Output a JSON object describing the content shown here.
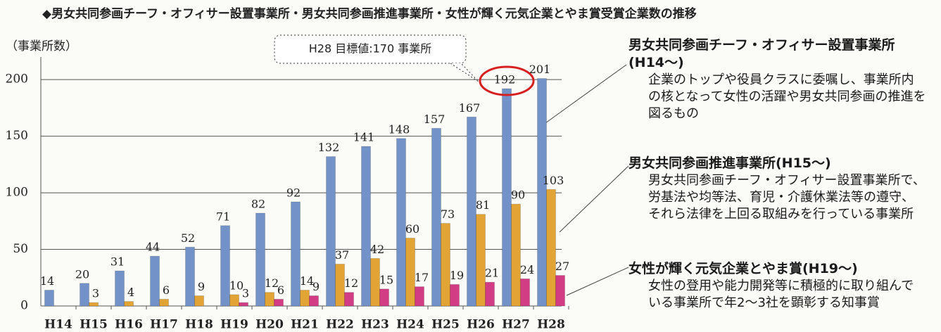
{
  "chart_data": {
    "type": "bar",
    "title": "◆男女共同参画チーフ・オフィサー設置事業所・男女共同参画推進事業所・女性が輝く元気企業とやま賞受賞企業数の推移",
    "y_label": "（事業所数）",
    "annotation": "H28 目標値:170 事業所",
    "categories": [
      "H14",
      "H15",
      "H16",
      "H17",
      "H18",
      "H19",
      "H20",
      "H21",
      "H22",
      "H23",
      "H24",
      "H25",
      "H26",
      "H27",
      "H28"
    ],
    "series": [
      {
        "name": "男女共同参画チーフ・オフィサー設置事業所(H14～)",
        "description": "企業のトップや役員クラスに委嘱し、事業所内の核となって女性の活躍や男女共同参画の推進を図るもの",
        "color": "#7393c8",
        "values": [
          14,
          20,
          31,
          44,
          52,
          71,
          82,
          92,
          132,
          141,
          148,
          157,
          167,
          192,
          201
        ]
      },
      {
        "name": "男女共同参画推進事業所(H15～)",
        "description": "男女共同参画チーフ・オフィサー設置事業所で、労基法や均等法、育児・介護休業法等の遵守、それら法律を上回る取組みを行っている事業所",
        "color": "#e2a535",
        "values": [
          null,
          3,
          4,
          6,
          9,
          10,
          12,
          14,
          37,
          42,
          60,
          73,
          81,
          90,
          103
        ]
      },
      {
        "name": "女性が輝く元気企業とやま賞(H19～)",
        "description": "女性の登用や能力開発等に積極的に取り組んでいる事業所で年2～3社を顕彰する知事賞",
        "color": "#d23c84",
        "values": [
          null,
          null,
          null,
          null,
          null,
          3,
          6,
          9,
          12,
          15,
          17,
          19,
          21,
          24,
          27
        ]
      }
    ],
    "ylim": [
      0,
      220
    ],
    "yticks": [
      0,
      50,
      100,
      150,
      200
    ],
    "grid": true
  }
}
